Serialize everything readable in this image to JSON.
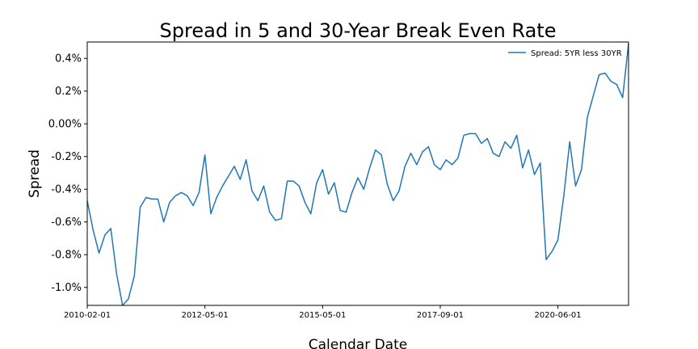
{
  "chart_data": {
    "type": "line",
    "title": "Spread in 5 and 30-Year Break Even Rate",
    "xlabel": "Calendar Date",
    "ylabel": "Spread",
    "ylim": [
      -1.11,
      0.5
    ],
    "y_ticks": [
      0.4,
      0.2,
      0.0,
      -0.2,
      -0.4,
      -0.6,
      -0.8,
      -1.0
    ],
    "y_tick_labels": [
      "0.4%",
      "0.2%",
      "0.00%",
      "-0.2%",
      "-0.4%",
      "-0.6%",
      "-0.8%",
      "-1.0%"
    ],
    "x_tick_labels": [
      "2010-02-01",
      "2012-05-01",
      "2015-05-01",
      "2017-09-01",
      "2020-06-01"
    ],
    "x_tick_positions": [
      0,
      20,
      40,
      60,
      80
    ],
    "grid": false,
    "legend_position": "top-right",
    "series": [
      {
        "name": "Spread: 5YR less 30YR",
        "color": "#1f77b4",
        "values": [
          -0.47,
          -0.65,
          -0.79,
          -0.68,
          -0.64,
          -0.92,
          -1.11,
          -1.07,
          -0.93,
          -0.51,
          -0.45,
          -0.46,
          -0.46,
          -0.6,
          -0.48,
          -0.44,
          -0.42,
          -0.44,
          -0.5,
          -0.42,
          -0.19,
          -0.55,
          -0.45,
          -0.38,
          -0.32,
          -0.26,
          -0.34,
          -0.22,
          -0.41,
          -0.47,
          -0.38,
          -0.54,
          -0.59,
          -0.58,
          -0.35,
          -0.35,
          -0.38,
          -0.48,
          -0.55,
          -0.36,
          -0.28,
          -0.43,
          -0.36,
          -0.53,
          -0.54,
          -0.42,
          -0.33,
          -0.4,
          -0.27,
          -0.16,
          -0.19,
          -0.37,
          -0.47,
          -0.41,
          -0.26,
          -0.18,
          -0.25,
          -0.17,
          -0.14,
          -0.25,
          -0.28,
          -0.22,
          -0.25,
          -0.21,
          -0.07,
          -0.06,
          -0.06,
          -0.12,
          -0.09,
          -0.18,
          -0.2,
          -0.11,
          -0.15,
          -0.07,
          -0.27,
          -0.16,
          -0.31,
          -0.24,
          -0.83,
          -0.78,
          -0.71,
          -0.44,
          -0.11,
          -0.38,
          -0.28,
          0.04,
          0.17,
          0.3,
          0.31,
          0.26,
          0.24,
          0.16,
          0.49
        ]
      }
    ]
  }
}
